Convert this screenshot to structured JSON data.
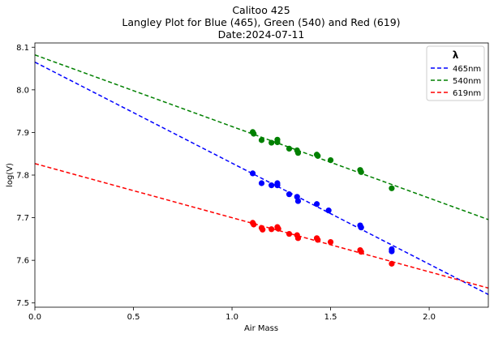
{
  "chart_data": {
    "type": "scatter",
    "title_lines": [
      "Calitoo 425",
      "Langley Plot for Blue (465), Green (540) and Red (619)",
      "Date:2024-07-11"
    ],
    "xlabel": "Air Mass",
    "ylabel": "log(V)",
    "xlim": [
      0.0,
      2.3
    ],
    "ylim": [
      7.49,
      8.11
    ],
    "xticks": [
      0.0,
      0.5,
      1.0,
      1.5,
      2.0
    ],
    "xtick_labels": [
      "0.0",
      "0.5",
      "1.0",
      "1.5",
      "2.0"
    ],
    "yticks": [
      7.5,
      7.6,
      7.7,
      7.8,
      7.9,
      8.0,
      8.1
    ],
    "ytick_labels": [
      "7.5",
      "7.6",
      "7.7",
      "7.8",
      "7.9",
      "8.0",
      "8.1"
    ],
    "grid": false,
    "legend": {
      "title": "λ",
      "position": "top-right",
      "entries": [
        "465nm",
        "540nm",
        "619nm"
      ]
    },
    "series": [
      {
        "name": "465nm",
        "color": "#0000ff",
        "fit": {
          "intercept": 8.065,
          "slope": -0.237
        },
        "points": [
          [
            1.105,
            7.804
          ],
          [
            1.15,
            7.781
          ],
          [
            1.2,
            7.776
          ],
          [
            1.23,
            7.776
          ],
          [
            1.23,
            7.781
          ],
          [
            1.29,
            7.755
          ],
          [
            1.33,
            7.749
          ],
          [
            1.335,
            7.739
          ],
          [
            1.43,
            7.732
          ],
          [
            1.49,
            7.717
          ],
          [
            1.65,
            7.682
          ],
          [
            1.655,
            7.677
          ],
          [
            1.81,
            7.626
          ],
          [
            1.81,
            7.621
          ]
        ]
      },
      {
        "name": "540nm",
        "color": "#008000",
        "fit": {
          "intercept": 8.082,
          "slope": -0.168
        },
        "points": [
          [
            1.105,
            7.901
          ],
          [
            1.11,
            7.897
          ],
          [
            1.15,
            7.882
          ],
          [
            1.2,
            7.876
          ],
          [
            1.23,
            7.883
          ],
          [
            1.23,
            7.877
          ],
          [
            1.29,
            7.862
          ],
          [
            1.33,
            7.858
          ],
          [
            1.335,
            7.852
          ],
          [
            1.43,
            7.848
          ],
          [
            1.435,
            7.845
          ],
          [
            1.5,
            7.835
          ],
          [
            1.65,
            7.812
          ],
          [
            1.655,
            7.807
          ],
          [
            1.81,
            7.769
          ]
        ]
      },
      {
        "name": "619nm",
        "color": "#ff0000",
        "fit": {
          "intercept": 7.827,
          "slope": -0.127
        },
        "points": [
          [
            1.105,
            7.688
          ],
          [
            1.11,
            7.684
          ],
          [
            1.15,
            7.676
          ],
          [
            1.155,
            7.672
          ],
          [
            1.2,
            7.673
          ],
          [
            1.23,
            7.678
          ],
          [
            1.235,
            7.674
          ],
          [
            1.29,
            7.662
          ],
          [
            1.33,
            7.659
          ],
          [
            1.335,
            7.652
          ],
          [
            1.43,
            7.652
          ],
          [
            1.435,
            7.648
          ],
          [
            1.5,
            7.643
          ],
          [
            1.65,
            7.624
          ],
          [
            1.655,
            7.62
          ],
          [
            1.81,
            7.592
          ]
        ]
      }
    ]
  }
}
